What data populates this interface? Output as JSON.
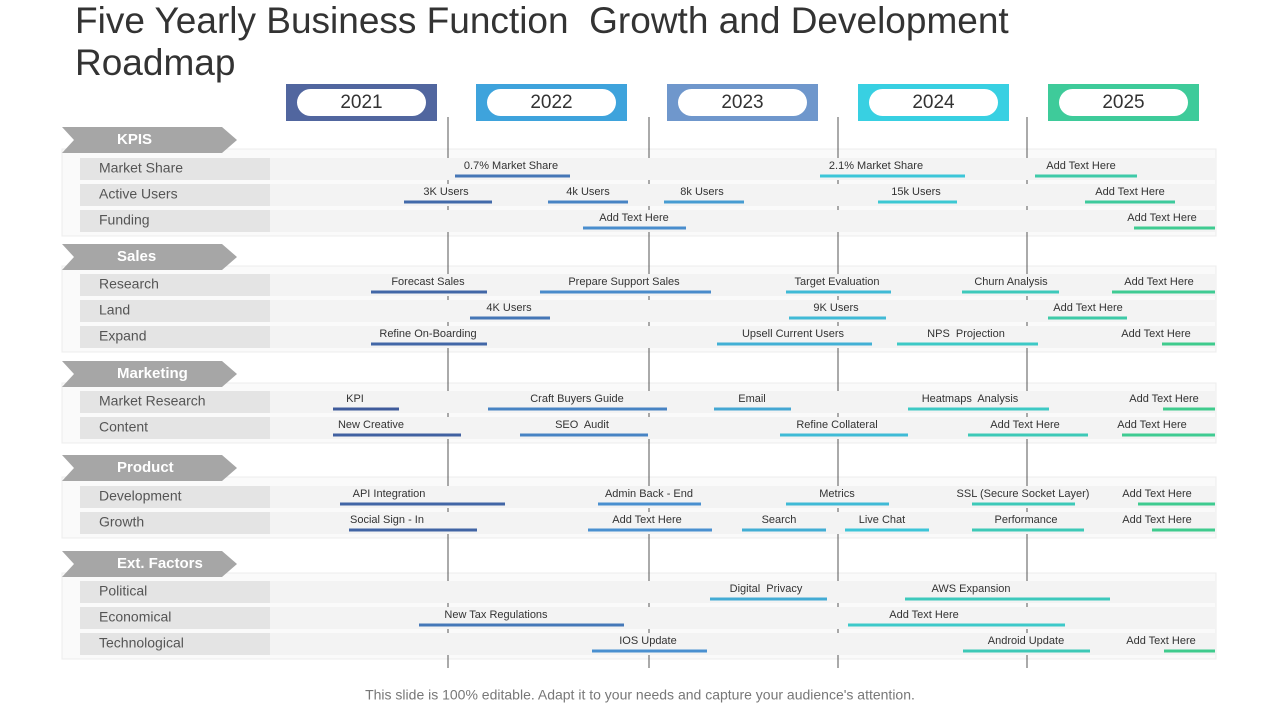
{
  "header": {
    "title": "Five Yearly Business Function  Growth and Development Roadmap"
  },
  "years": [
    "2021",
    "2022",
    "2023",
    "2024",
    "2025"
  ],
  "sections": [
    {
      "name": "KPIS",
      "rows": [
        {
          "label": "Market Share",
          "items": [
            "0.7% Market Share",
            "2.1% Market Share",
            "Add Text Here"
          ]
        },
        {
          "label": "Active Users",
          "items": [
            "3K Users",
            "4k Users",
            "8k Users",
            "15k Users",
            "Add Text Here"
          ]
        },
        {
          "label": "Funding",
          "items": [
            "Add Text Here",
            "Add Text Here"
          ]
        }
      ]
    },
    {
      "name": "Sales",
      "rows": [
        {
          "label": "Research",
          "items": [
            "Forecast Sales",
            "Prepare Support Sales",
            "Target Evaluation",
            "Churn Analysis",
            "Add Text Here"
          ]
        },
        {
          "label": "Land",
          "items": [
            "4K Users",
            "9K Users",
            "Add Text Here"
          ]
        },
        {
          "label": "Expand",
          "items": [
            "Refine On-Boarding",
            "Upsell Current Users",
            "NPS  Projection",
            "Add Text Here"
          ]
        }
      ]
    },
    {
      "name": "Marketing",
      "rows": [
        {
          "label": "Market Research",
          "items": [
            "KPI",
            "Craft Buyers Guide",
            "Email",
            "Heatmaps  Analysis",
            "Add Text Here"
          ]
        },
        {
          "label": "Content",
          "items": [
            "New Creative",
            "SEO  Audit",
            "Refine Collateral",
            "Add Text Here",
            "Add Text Here"
          ]
        }
      ]
    },
    {
      "name": "Product",
      "rows": [
        {
          "label": "Development",
          "items": [
            "API Integration",
            "Admin Back - End",
            "Metrics",
            "SSL (Secure Socket Layer)",
            "Add Text Here"
          ]
        },
        {
          "label": "Growth",
          "items": [
            "Social Sign - In",
            "Add Text Here",
            "Search",
            "Live Chat",
            "Performance",
            "Add Text Here"
          ]
        }
      ]
    },
    {
      "name": "Ext. Factors",
      "rows": [
        {
          "label": "Political",
          "items": [
            "Digital  Privacy",
            "AWS Expansion"
          ]
        },
        {
          "label": "Economical",
          "items": [
            "New Tax Regulations",
            "Add Text Here"
          ]
        },
        {
          "label": "Technological",
          "items": [
            "IOS Update",
            "Android Update",
            "Add Text Here"
          ]
        }
      ]
    }
  ],
  "footer": "This slide is 100% editable. Adapt it to your needs and capture your audience's attention."
}
